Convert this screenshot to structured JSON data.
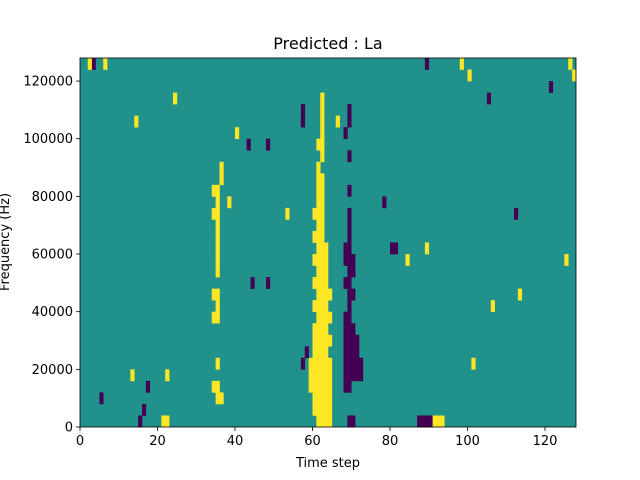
{
  "chart_data": {
    "type": "heatmap",
    "title": "Predicted : La",
    "xlabel": "Time step",
    "ylabel": "Frequency (Hz)",
    "xlim": [
      0,
      128
    ],
    "ylim": [
      0,
      128000
    ],
    "x_ticks": [
      {
        "value": 0,
        "label": "0"
      },
      {
        "value": 20,
        "label": "20"
      },
      {
        "value": 40,
        "label": "40"
      },
      {
        "value": 60,
        "label": "60"
      },
      {
        "value": 80,
        "label": "80"
      },
      {
        "value": 100,
        "label": "100"
      },
      {
        "value": 120,
        "label": "120"
      }
    ],
    "y_ticks": [
      {
        "value": 0,
        "label": "0"
      },
      {
        "value": 20000,
        "label": "20000"
      },
      {
        "value": 40000,
        "label": "40000"
      },
      {
        "value": 60000,
        "label": "60000"
      },
      {
        "value": 80000,
        "label": "80000"
      },
      {
        "value": 100000,
        "label": "100000"
      },
      {
        "value": 120000,
        "label": "120000"
      }
    ],
    "colormap": {
      "low": "#440154",
      "mid": "#21918c",
      "high": "#fde725"
    },
    "background_value": "mid",
    "rows": 32,
    "row_height_hz": 4000,
    "cells": [
      [
        21,
        0,
        "high"
      ],
      [
        22,
        0,
        "high"
      ],
      [
        61,
        0,
        "high"
      ],
      [
        62,
        0,
        "high"
      ],
      [
        63,
        0,
        "high"
      ],
      [
        64,
        0,
        "high"
      ],
      [
        60,
        1,
        "high"
      ],
      [
        61,
        1,
        "high"
      ],
      [
        62,
        1,
        "high"
      ],
      [
        63,
        1,
        "high"
      ],
      [
        64,
        1,
        "high"
      ],
      [
        60,
        2,
        "high"
      ],
      [
        61,
        2,
        "high"
      ],
      [
        62,
        2,
        "high"
      ],
      [
        63,
        2,
        "high"
      ],
      [
        64,
        2,
        "high"
      ],
      [
        59,
        3,
        "high"
      ],
      [
        60,
        3,
        "high"
      ],
      [
        61,
        3,
        "high"
      ],
      [
        62,
        3,
        "high"
      ],
      [
        63,
        3,
        "high"
      ],
      [
        64,
        3,
        "high"
      ],
      [
        59,
        4,
        "high"
      ],
      [
        60,
        4,
        "high"
      ],
      [
        61,
        4,
        "high"
      ],
      [
        62,
        4,
        "high"
      ],
      [
        63,
        4,
        "high"
      ],
      [
        64,
        4,
        "high"
      ],
      [
        59,
        5,
        "high"
      ],
      [
        60,
        5,
        "high"
      ],
      [
        61,
        5,
        "high"
      ],
      [
        62,
        5,
        "high"
      ],
      [
        63,
        5,
        "high"
      ],
      [
        64,
        5,
        "high"
      ],
      [
        60,
        6,
        "high"
      ],
      [
        61,
        6,
        "high"
      ],
      [
        62,
        6,
        "high"
      ],
      [
        63,
        6,
        "high"
      ],
      [
        60,
        7,
        "high"
      ],
      [
        61,
        7,
        "high"
      ],
      [
        62,
        7,
        "high"
      ],
      [
        63,
        7,
        "high"
      ],
      [
        64,
        7,
        "high"
      ],
      [
        60,
        8,
        "high"
      ],
      [
        61,
        8,
        "high"
      ],
      [
        62,
        8,
        "high"
      ],
      [
        63,
        8,
        "high"
      ],
      [
        61,
        9,
        "high"
      ],
      [
        62,
        9,
        "high"
      ],
      [
        63,
        9,
        "high"
      ],
      [
        64,
        9,
        "high"
      ],
      [
        60,
        10,
        "high"
      ],
      [
        61,
        10,
        "high"
      ],
      [
        62,
        10,
        "high"
      ],
      [
        63,
        10,
        "high"
      ],
      [
        61,
        11,
        "high"
      ],
      [
        62,
        11,
        "high"
      ],
      [
        63,
        11,
        "high"
      ],
      [
        64,
        11,
        "high"
      ],
      [
        60,
        12,
        "high"
      ],
      [
        61,
        12,
        "high"
      ],
      [
        62,
        12,
        "high"
      ],
      [
        63,
        12,
        "high"
      ],
      [
        61,
        13,
        "high"
      ],
      [
        62,
        13,
        "high"
      ],
      [
        63,
        13,
        "high"
      ],
      [
        60,
        14,
        "high"
      ],
      [
        61,
        14,
        "high"
      ],
      [
        62,
        14,
        "high"
      ],
      [
        63,
        14,
        "high"
      ],
      [
        61,
        15,
        "high"
      ],
      [
        62,
        15,
        "high"
      ],
      [
        63,
        15,
        "high"
      ],
      [
        60,
        16,
        "high"
      ],
      [
        61,
        16,
        "high"
      ],
      [
        62,
        16,
        "high"
      ],
      [
        61,
        17,
        "high"
      ],
      [
        62,
        17,
        "high"
      ],
      [
        60,
        18,
        "high"
      ],
      [
        61,
        18,
        "high"
      ],
      [
        62,
        18,
        "high"
      ],
      [
        61,
        19,
        "high"
      ],
      [
        62,
        19,
        "high"
      ],
      [
        61,
        20,
        "high"
      ],
      [
        62,
        20,
        "high"
      ],
      [
        61,
        21,
        "high"
      ],
      [
        62,
        21,
        "high"
      ],
      [
        61,
        22,
        "high"
      ],
      [
        62,
        23,
        "high"
      ],
      [
        61,
        24,
        "high"
      ],
      [
        62,
        24,
        "high"
      ],
      [
        62,
        25,
        "high"
      ],
      [
        62,
        26,
        "high"
      ],
      [
        62,
        27,
        "high"
      ],
      [
        62,
        28,
        "high"
      ],
      [
        35,
        2,
        "high"
      ],
      [
        36,
        2,
        "high"
      ],
      [
        34,
        3,
        "high"
      ],
      [
        35,
        3,
        "high"
      ],
      [
        35,
        5,
        "high"
      ],
      [
        34,
        9,
        "high"
      ],
      [
        35,
        9,
        "high"
      ],
      [
        35,
        10,
        "high"
      ],
      [
        34,
        11,
        "high"
      ],
      [
        35,
        11,
        "high"
      ],
      [
        35,
        13,
        "high"
      ],
      [
        35,
        14,
        "high"
      ],
      [
        35,
        15,
        "high"
      ],
      [
        35,
        16,
        "high"
      ],
      [
        35,
        17,
        "high"
      ],
      [
        34,
        18,
        "high"
      ],
      [
        35,
        18,
        "high"
      ],
      [
        35,
        19,
        "high"
      ],
      [
        34,
        20,
        "high"
      ],
      [
        35,
        20,
        "high"
      ],
      [
        36,
        21,
        "high"
      ],
      [
        36,
        22,
        "high"
      ],
      [
        69,
        0,
        "low"
      ],
      [
        70,
        0,
        "low"
      ],
      [
        68,
        3,
        "low"
      ],
      [
        69,
        3,
        "low"
      ],
      [
        68,
        4,
        "low"
      ],
      [
        69,
        4,
        "low"
      ],
      [
        70,
        4,
        "low"
      ],
      [
        71,
        4,
        "low"
      ],
      [
        72,
        4,
        "low"
      ],
      [
        68,
        5,
        "low"
      ],
      [
        69,
        5,
        "low"
      ],
      [
        70,
        5,
        "low"
      ],
      [
        71,
        5,
        "low"
      ],
      [
        72,
        5,
        "low"
      ],
      [
        68,
        6,
        "low"
      ],
      [
        69,
        6,
        "low"
      ],
      [
        70,
        6,
        "low"
      ],
      [
        71,
        6,
        "low"
      ],
      [
        68,
        7,
        "low"
      ],
      [
        69,
        7,
        "low"
      ],
      [
        70,
        7,
        "low"
      ],
      [
        71,
        7,
        "low"
      ],
      [
        68,
        8,
        "low"
      ],
      [
        69,
        8,
        "low"
      ],
      [
        70,
        8,
        "low"
      ],
      [
        68,
        9,
        "low"
      ],
      [
        69,
        9,
        "low"
      ],
      [
        69,
        10,
        "low"
      ],
      [
        69,
        11,
        "low"
      ],
      [
        70,
        11,
        "low"
      ],
      [
        68,
        12,
        "low"
      ],
      [
        69,
        12,
        "low"
      ],
      [
        69,
        13,
        "low"
      ],
      [
        70,
        13,
        "low"
      ],
      [
        68,
        14,
        "low"
      ],
      [
        69,
        14,
        "low"
      ],
      [
        70,
        14,
        "low"
      ],
      [
        68,
        15,
        "low"
      ],
      [
        69,
        15,
        "low"
      ],
      [
        69,
        16,
        "low"
      ],
      [
        69,
        17,
        "low"
      ],
      [
        69,
        18,
        "low"
      ],
      [
        69,
        20,
        "low"
      ],
      [
        69,
        23,
        "low"
      ],
      [
        68,
        25,
        "low"
      ],
      [
        87,
        0,
        "low"
      ],
      [
        88,
        0,
        "low"
      ],
      [
        89,
        0,
        "low"
      ],
      [
        90,
        0,
        "low"
      ],
      [
        91,
        0,
        "high"
      ],
      [
        92,
        0,
        "high"
      ],
      [
        93,
        0,
        "high"
      ],
      [
        80,
        15,
        "low"
      ],
      [
        81,
        15,
        "low"
      ],
      [
        15,
        0,
        "low"
      ],
      [
        16,
        1,
        "low"
      ],
      [
        5,
        2,
        "low"
      ],
      [
        17,
        3,
        "low"
      ],
      [
        57,
        5,
        "low"
      ],
      [
        58,
        6,
        "low"
      ],
      [
        44,
        12,
        "low"
      ],
      [
        48,
        12,
        "low"
      ],
      [
        43,
        24,
        "low"
      ],
      [
        48,
        24,
        "low"
      ],
      [
        57,
        26,
        "low"
      ],
      [
        57,
        27,
        "low"
      ],
      [
        69,
        26,
        "low"
      ],
      [
        69,
        27,
        "low"
      ],
      [
        3,
        31,
        "low"
      ],
      [
        89,
        31,
        "low"
      ],
      [
        78,
        19,
        "low"
      ],
      [
        112,
        18,
        "low"
      ],
      [
        105,
        28,
        "low"
      ],
      [
        121,
        29,
        "low"
      ],
      [
        2,
        31,
        "high"
      ],
      [
        6,
        31,
        "high"
      ],
      [
        14,
        26,
        "high"
      ],
      [
        24,
        28,
        "high"
      ],
      [
        40,
        25,
        "high"
      ],
      [
        66,
        26,
        "high"
      ],
      [
        98,
        31,
        "high"
      ],
      [
        100,
        30,
        "high"
      ],
      [
        126,
        31,
        "high"
      ],
      [
        127,
        30,
        "high"
      ],
      [
        13,
        4,
        "high"
      ],
      [
        22,
        4,
        "high"
      ],
      [
        38,
        19,
        "high"
      ],
      [
        53,
        18,
        "high"
      ],
      [
        84,
        14,
        "high"
      ],
      [
        89,
        15,
        "high"
      ],
      [
        101,
        5,
        "high"
      ],
      [
        106,
        10,
        "high"
      ],
      [
        113,
        11,
        "high"
      ],
      [
        125,
        14,
        "high"
      ]
    ]
  }
}
